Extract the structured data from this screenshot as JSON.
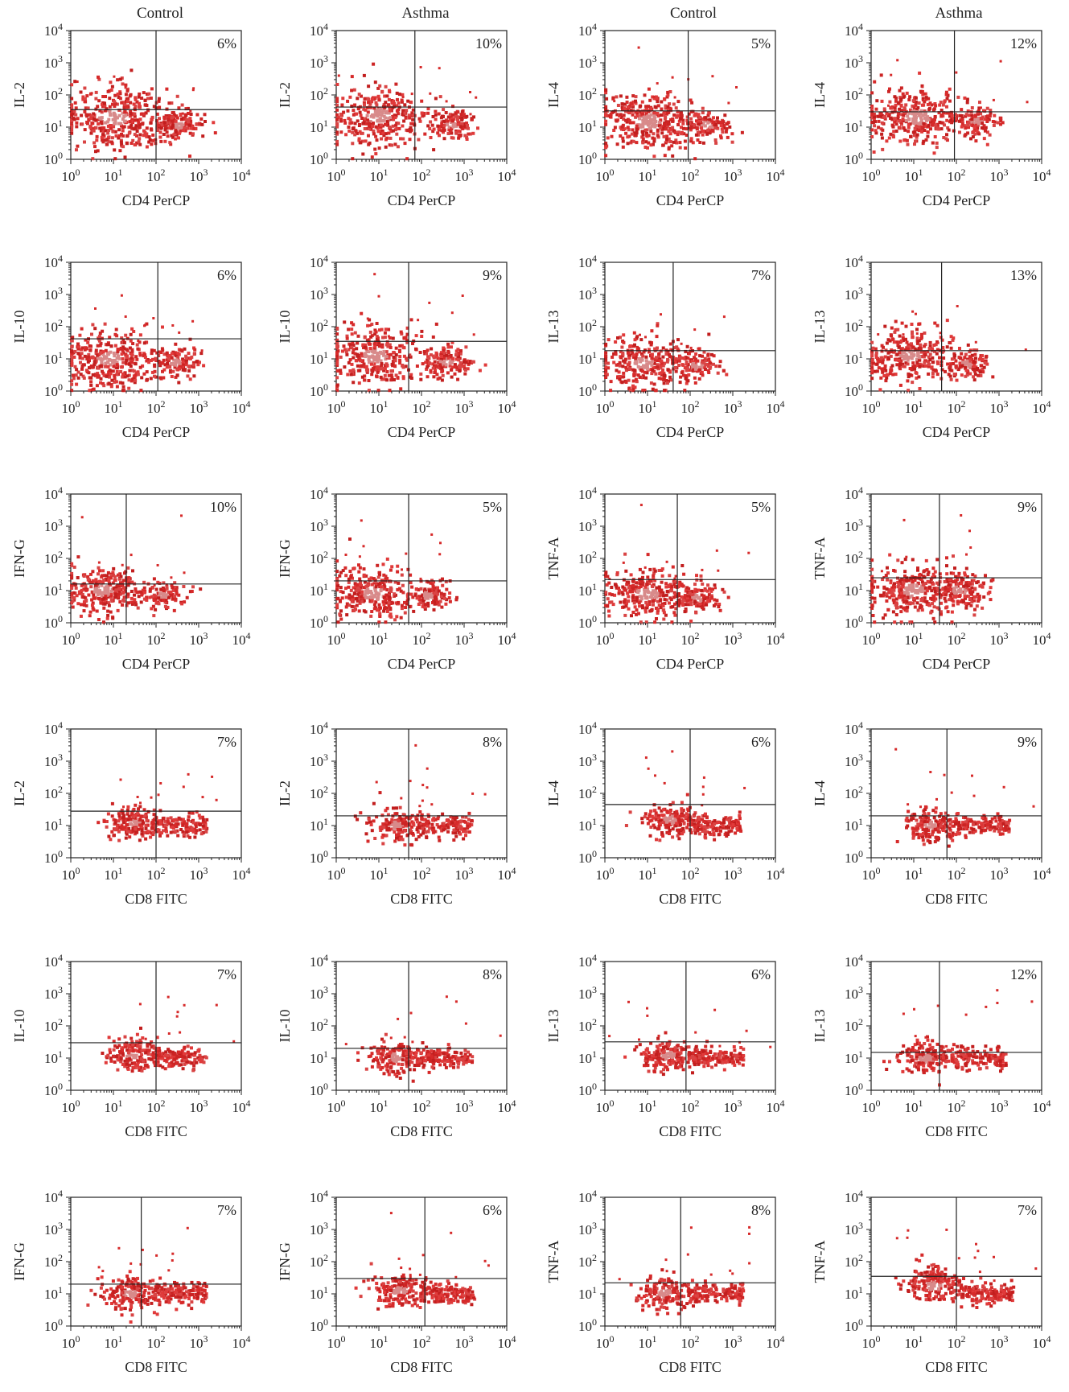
{
  "column_titles": [
    "Control",
    "Asthma",
    "Control",
    "Asthma"
  ],
  "chart_data": [
    {
      "type": "scatter",
      "row": 0,
      "col": 0,
      "group": "Control",
      "xlabel": "CD4 PerCP",
      "ylabel": "IL-2",
      "percent": "6%",
      "x_scale": "log",
      "y_scale": "log",
      "xlim": [
        1,
        10000
      ],
      "ylim": [
        1,
        10000
      ],
      "x_gate": 100,
      "y_gate": 35,
      "clusters": [
        {
          "x": 10,
          "y": 20,
          "spread": 0.5,
          "n": 380
        },
        {
          "x": 350,
          "y": 12,
          "spread": 0.22,
          "n": 150
        }
      ]
    },
    {
      "type": "scatter",
      "row": 0,
      "col": 1,
      "group": "Asthma",
      "xlabel": "CD4 PerCP",
      "ylabel": "IL-2",
      "percent": "10%",
      "x_scale": "log",
      "y_scale": "log",
      "xlim": [
        1,
        10000
      ],
      "ylim": [
        1,
        10000
      ],
      "x_gate": 70,
      "y_gate": 42,
      "clusters": [
        {
          "x": 10,
          "y": 22,
          "spread": 0.45,
          "n": 340
        },
        {
          "x": 500,
          "y": 12,
          "spread": 0.22,
          "n": 130
        }
      ]
    },
    {
      "type": "scatter",
      "row": 0,
      "col": 2,
      "group": "Control",
      "xlabel": "CD4 PerCP",
      "ylabel": "IL-4",
      "percent": "5%",
      "x_scale": "log",
      "y_scale": "log",
      "xlim": [
        1,
        10000
      ],
      "ylim": [
        1,
        10000
      ],
      "x_gate": 90,
      "y_gate": 32,
      "clusters": [
        {
          "x": 10,
          "y": 15,
          "spread": 0.45,
          "n": 360
        },
        {
          "x": 250,
          "y": 12,
          "spread": 0.25,
          "n": 130
        }
      ]
    },
    {
      "type": "scatter",
      "row": 0,
      "col": 3,
      "group": "Asthma",
      "xlabel": "CD4 PerCP",
      "ylabel": "IL-4",
      "percent": "12%",
      "x_scale": "log",
      "y_scale": "log",
      "xlim": [
        1,
        10000
      ],
      "ylim": [
        1,
        10000
      ],
      "x_gate": 90,
      "y_gate": 30,
      "clusters": [
        {
          "x": 12,
          "y": 20,
          "spread": 0.45,
          "n": 330
        },
        {
          "x": 300,
          "y": 15,
          "spread": 0.22,
          "n": 120
        }
      ]
    },
    {
      "type": "scatter",
      "row": 1,
      "col": 0,
      "group": "Control",
      "xlabel": "CD4 PerCP",
      "ylabel": "IL-10",
      "percent": "6%",
      "x_scale": "log",
      "y_scale": "log",
      "xlim": [
        1,
        10000
      ],
      "ylim": [
        1,
        10000
      ],
      "x_gate": 110,
      "y_gate": 42,
      "clusters": [
        {
          "x": 8,
          "y": 10,
          "spread": 0.45,
          "n": 350
        },
        {
          "x": 300,
          "y": 8,
          "spread": 0.22,
          "n": 130
        }
      ]
    },
    {
      "type": "scatter",
      "row": 1,
      "col": 1,
      "group": "Asthma",
      "xlabel": "CD4 PerCP",
      "ylabel": "IL-10",
      "percent": "9%",
      "x_scale": "log",
      "y_scale": "log",
      "xlim": [
        1,
        10000
      ],
      "ylim": [
        1,
        10000
      ],
      "x_gate": 50,
      "y_gate": 35,
      "clusters": [
        {
          "x": 8,
          "y": 12,
          "spread": 0.45,
          "n": 340
        },
        {
          "x": 400,
          "y": 8,
          "spread": 0.25,
          "n": 150
        }
      ]
    },
    {
      "type": "scatter",
      "row": 1,
      "col": 2,
      "group": "Control",
      "xlabel": "CD4 PerCP",
      "ylabel": "IL-13",
      "percent": "7%",
      "x_scale": "log",
      "y_scale": "log",
      "xlim": [
        1,
        10000
      ],
      "ylim": [
        1,
        10000
      ],
      "x_gate": 40,
      "y_gate": 18,
      "clusters": [
        {
          "x": 8,
          "y": 7,
          "spread": 0.4,
          "n": 300
        },
        {
          "x": 150,
          "y": 6,
          "spread": 0.22,
          "n": 110
        }
      ]
    },
    {
      "type": "scatter",
      "row": 1,
      "col": 3,
      "group": "Asthma",
      "xlabel": "CD4 PerCP",
      "ylabel": "IL-13",
      "percent": "13%",
      "x_scale": "log",
      "y_scale": "log",
      "xlim": [
        1,
        10000
      ],
      "ylim": [
        1,
        10000
      ],
      "x_gate": 45,
      "y_gate": 18,
      "clusters": [
        {
          "x": 8,
          "y": 12,
          "spread": 0.4,
          "n": 300
        },
        {
          "x": 180,
          "y": 7,
          "spread": 0.2,
          "n": 110
        }
      ]
    },
    {
      "type": "scatter",
      "row": 2,
      "col": 0,
      "group": "Control",
      "xlabel": "CD4 PerCP",
      "ylabel": "IFN-G",
      "percent": "10%",
      "x_scale": "log",
      "y_scale": "log",
      "xlim": [
        1,
        10000
      ],
      "ylim": [
        1,
        10000
      ],
      "x_gate": 20,
      "y_gate": 16,
      "clusters": [
        {
          "x": 6,
          "y": 10,
          "spread": 0.35,
          "n": 280
        },
        {
          "x": 150,
          "y": 7,
          "spread": 0.22,
          "n": 110
        }
      ]
    },
    {
      "type": "scatter",
      "row": 2,
      "col": 1,
      "group": "Asthma",
      "xlabel": "CD4 PerCP",
      "ylabel": "IFN-G",
      "percent": "5%",
      "x_scale": "log",
      "y_scale": "log",
      "xlim": [
        1,
        10000
      ],
      "ylim": [
        1,
        10000
      ],
      "x_gate": 50,
      "y_gate": 20,
      "clusters": [
        {
          "x": 8,
          "y": 8,
          "spread": 0.4,
          "n": 290
        },
        {
          "x": 150,
          "y": 7,
          "spread": 0.22,
          "n": 110
        }
      ]
    },
    {
      "type": "scatter",
      "row": 2,
      "col": 2,
      "group": "Control",
      "xlabel": "CD4 PerCP",
      "ylabel": "TNF-A",
      "percent": "5%",
      "x_scale": "log",
      "y_scale": "log",
      "xlim": [
        1,
        10000
      ],
      "ylim": [
        1,
        10000
      ],
      "x_gate": 50,
      "y_gate": 22,
      "clusters": [
        {
          "x": 10,
          "y": 8,
          "spread": 0.4,
          "n": 290
        },
        {
          "x": 150,
          "y": 6,
          "spread": 0.22,
          "n": 110
        }
      ]
    },
    {
      "type": "scatter",
      "row": 2,
      "col": 3,
      "group": "Asthma",
      "xlabel": "CD4 PerCP",
      "ylabel": "TNF-A",
      "percent": "9%",
      "x_scale": "log",
      "y_scale": "log",
      "xlim": [
        1,
        10000
      ],
      "ylim": [
        1,
        10000
      ],
      "x_gate": 40,
      "y_gate": 25,
      "clusters": [
        {
          "x": 10,
          "y": 10,
          "spread": 0.45,
          "n": 320
        },
        {
          "x": 120,
          "y": 10,
          "spread": 0.28,
          "n": 160
        }
      ]
    },
    {
      "type": "scatter",
      "row": 3,
      "col": 0,
      "group": "Control",
      "xlabel": "CD8 FITC",
      "ylabel": "IL-2",
      "percent": "7%",
      "x_scale": "log",
      "y_scale": "log",
      "xlim": [
        1,
        10000
      ],
      "ylim": [
        1,
        10000
      ],
      "x_gate": 100,
      "y_gate": 28,
      "clusters": [
        {
          "x": 30,
          "y": 12,
          "spread": 0.25,
          "n": 170
        },
        {
          "x": 350,
          "y": 10,
          "spread": 0.2,
          "n": 140,
          "band": true
        }
      ]
    },
    {
      "type": "scatter",
      "row": 3,
      "col": 1,
      "group": "Asthma",
      "xlabel": "CD8 FITC",
      "ylabel": "IL-2",
      "percent": "8%",
      "x_scale": "log",
      "y_scale": "log",
      "xlim": [
        1,
        10000
      ],
      "ylim": [
        1,
        10000
      ],
      "x_gate": 50,
      "y_gate": 20,
      "clusters": [
        {
          "x": 25,
          "y": 10,
          "spread": 0.25,
          "n": 170
        },
        {
          "x": 350,
          "y": 10,
          "spread": 0.2,
          "n": 140,
          "band": true
        }
      ]
    },
    {
      "type": "scatter",
      "row": 3,
      "col": 2,
      "group": "Control",
      "xlabel": "CD8 FITC",
      "ylabel": "IL-4",
      "percent": "6%",
      "x_scale": "log",
      "y_scale": "log",
      "xlim": [
        1,
        10000
      ],
      "ylim": [
        1,
        10000
      ],
      "x_gate": 100,
      "y_gate": 45,
      "clusters": [
        {
          "x": 35,
          "y": 15,
          "spread": 0.25,
          "n": 180
        },
        {
          "x": 400,
          "y": 10,
          "spread": 0.2,
          "n": 140,
          "band": true
        }
      ]
    },
    {
      "type": "scatter",
      "row": 3,
      "col": 3,
      "group": "Asthma",
      "xlabel": "CD8 FITC",
      "ylabel": "IL-4",
      "percent": "9%",
      "x_scale": "log",
      "y_scale": "log",
      "xlim": [
        1,
        10000
      ],
      "ylim": [
        1,
        10000
      ],
      "x_gate": 60,
      "y_gate": 20,
      "clusters": [
        {
          "x": 25,
          "y": 10,
          "spread": 0.25,
          "n": 170
        },
        {
          "x": 400,
          "y": 10,
          "spread": 0.2,
          "n": 140,
          "band": true
        }
      ]
    },
    {
      "type": "scatter",
      "row": 4,
      "col": 0,
      "group": "Control",
      "xlabel": "CD8 FITC",
      "ylabel": "IL-10",
      "percent": "7%",
      "x_scale": "log",
      "y_scale": "log",
      "xlim": [
        1,
        10000
      ],
      "ylim": [
        1,
        10000
      ],
      "x_gate": 100,
      "y_gate": 30,
      "clusters": [
        {
          "x": 30,
          "y": 12,
          "spread": 0.25,
          "n": 170
        },
        {
          "x": 350,
          "y": 10,
          "spread": 0.2,
          "n": 140,
          "band": true
        }
      ]
    },
    {
      "type": "scatter",
      "row": 4,
      "col": 1,
      "group": "Asthma",
      "xlabel": "CD8 FITC",
      "ylabel": "IL-10",
      "percent": "8%",
      "x_scale": "log",
      "y_scale": "log",
      "xlim": [
        1,
        10000
      ],
      "ylim": [
        1,
        10000
      ],
      "x_gate": 50,
      "y_gate": 20,
      "clusters": [
        {
          "x": 25,
          "y": 10,
          "spread": 0.25,
          "n": 170
        },
        {
          "x": 350,
          "y": 10,
          "spread": 0.2,
          "n": 140,
          "band": true
        }
      ]
    },
    {
      "type": "scatter",
      "row": 4,
      "col": 2,
      "group": "Control",
      "xlabel": "CD8 FITC",
      "ylabel": "IL-13",
      "percent": "6%",
      "x_scale": "log",
      "y_scale": "log",
      "xlim": [
        1,
        10000
      ],
      "ylim": [
        1,
        10000
      ],
      "x_gate": 80,
      "y_gate": 32,
      "clusters": [
        {
          "x": 30,
          "y": 12,
          "spread": 0.25,
          "n": 180
        },
        {
          "x": 400,
          "y": 10,
          "spread": 0.2,
          "n": 140,
          "band": true
        }
      ]
    },
    {
      "type": "scatter",
      "row": 4,
      "col": 3,
      "group": "Asthma",
      "xlabel": "CD8 FITC",
      "ylabel": "IL-13",
      "percent": "12%",
      "x_scale": "log",
      "y_scale": "log",
      "xlim": [
        1,
        10000
      ],
      "ylim": [
        1,
        10000
      ],
      "x_gate": 40,
      "y_gate": 15,
      "clusters": [
        {
          "x": 20,
          "y": 10,
          "spread": 0.25,
          "n": 170
        },
        {
          "x": 350,
          "y": 10,
          "spread": 0.2,
          "n": 140,
          "band": true
        }
      ]
    },
    {
      "type": "scatter",
      "row": 5,
      "col": 0,
      "group": "Control",
      "xlabel": "CD8 FITC",
      "ylabel": "IFN-G",
      "percent": "7%",
      "x_scale": "log",
      "y_scale": "log",
      "xlim": [
        1,
        10000
      ],
      "ylim": [
        1,
        10000
      ],
      "x_gate": 45,
      "y_gate": 20,
      "clusters": [
        {
          "x": 25,
          "y": 10,
          "spread": 0.25,
          "n": 170
        },
        {
          "x": 350,
          "y": 10,
          "spread": 0.2,
          "n": 150,
          "band": true
        }
      ]
    },
    {
      "type": "scatter",
      "row": 5,
      "col": 1,
      "group": "Asthma",
      "xlabel": "CD8 FITC",
      "ylabel": "IFN-G",
      "percent": "6%",
      "x_scale": "log",
      "y_scale": "log",
      "xlim": [
        1,
        10000
      ],
      "ylim": [
        1,
        10000
      ],
      "x_gate": 120,
      "y_gate": 30,
      "clusters": [
        {
          "x": 30,
          "y": 12,
          "spread": 0.25,
          "n": 170
        },
        {
          "x": 400,
          "y": 10,
          "spread": 0.2,
          "n": 140,
          "band": true
        }
      ]
    },
    {
      "type": "scatter",
      "row": 5,
      "col": 2,
      "group": "Control",
      "xlabel": "CD8 FITC",
      "ylabel": "TNF-A",
      "percent": "8%",
      "x_scale": "log",
      "y_scale": "log",
      "xlim": [
        1,
        10000
      ],
      "ylim": [
        1,
        10000
      ],
      "x_gate": 60,
      "y_gate": 22,
      "clusters": [
        {
          "x": 25,
          "y": 10,
          "spread": 0.25,
          "n": 170
        },
        {
          "x": 400,
          "y": 10,
          "spread": 0.2,
          "n": 140,
          "band": true
        }
      ]
    },
    {
      "type": "scatter",
      "row": 5,
      "col": 3,
      "group": "Asthma",
      "xlabel": "CD8 FITC",
      "ylabel": "TNF-A",
      "percent": "7%",
      "x_scale": "log",
      "y_scale": "log",
      "xlim": [
        1,
        10000
      ],
      "ylim": [
        1,
        10000
      ],
      "x_gate": 100,
      "y_gate": 35,
      "clusters": [
        {
          "x": 30,
          "y": 18,
          "spread": 0.28,
          "n": 190
        },
        {
          "x": 500,
          "y": 10,
          "spread": 0.2,
          "n": 140,
          "band": true
        }
      ]
    }
  ]
}
